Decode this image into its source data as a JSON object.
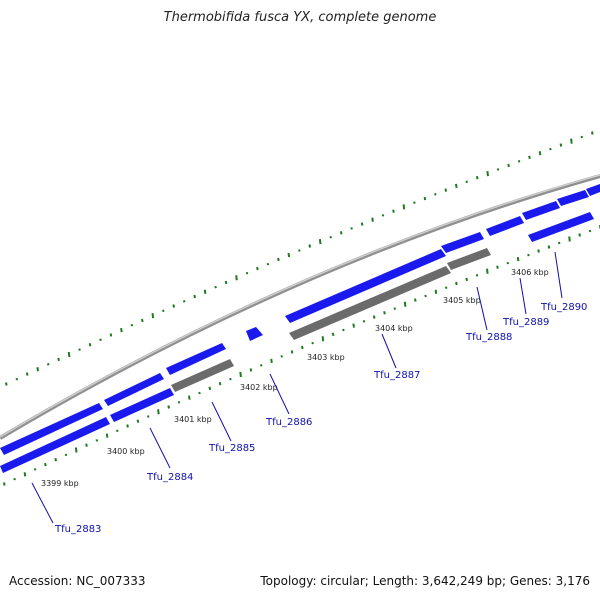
{
  "title": "Thermobifida fusca YX, complete genome",
  "footer": {
    "accession_label": "Accession:",
    "accession_value": "NC_007333",
    "topology": "Topology: circular; Length: 3,642,249 bp; Genes: 3,176"
  },
  "scale_ticks": [
    {
      "kbp": 3399,
      "label": "3399 kbp"
    },
    {
      "kbp": 3400,
      "label": "3400 kbp"
    },
    {
      "kbp": 3401,
      "label": "3401 kbp"
    },
    {
      "kbp": 3402,
      "label": "3402 kbp"
    },
    {
      "kbp": 3403,
      "label": "3403 kbp"
    },
    {
      "kbp": 3404,
      "label": "3404 kbp"
    },
    {
      "kbp": 3405,
      "label": "3405 kbp"
    },
    {
      "kbp": 3406,
      "label": "3406 kbp"
    }
  ],
  "gene_labels": [
    "Tfu_2883",
    "Tfu_2884",
    "Tfu_2885",
    "Tfu_2886",
    "Tfu_2887",
    "Tfu_2888",
    "Tfu_2889",
    "Tfu_2890"
  ],
  "colors": {
    "cds": "#1a1aee",
    "pseudogene": "#6b6b6b",
    "backbone": "#9a9a9a",
    "gc_ticks": "#1f7a1f",
    "label_text": "#1010aa"
  }
}
